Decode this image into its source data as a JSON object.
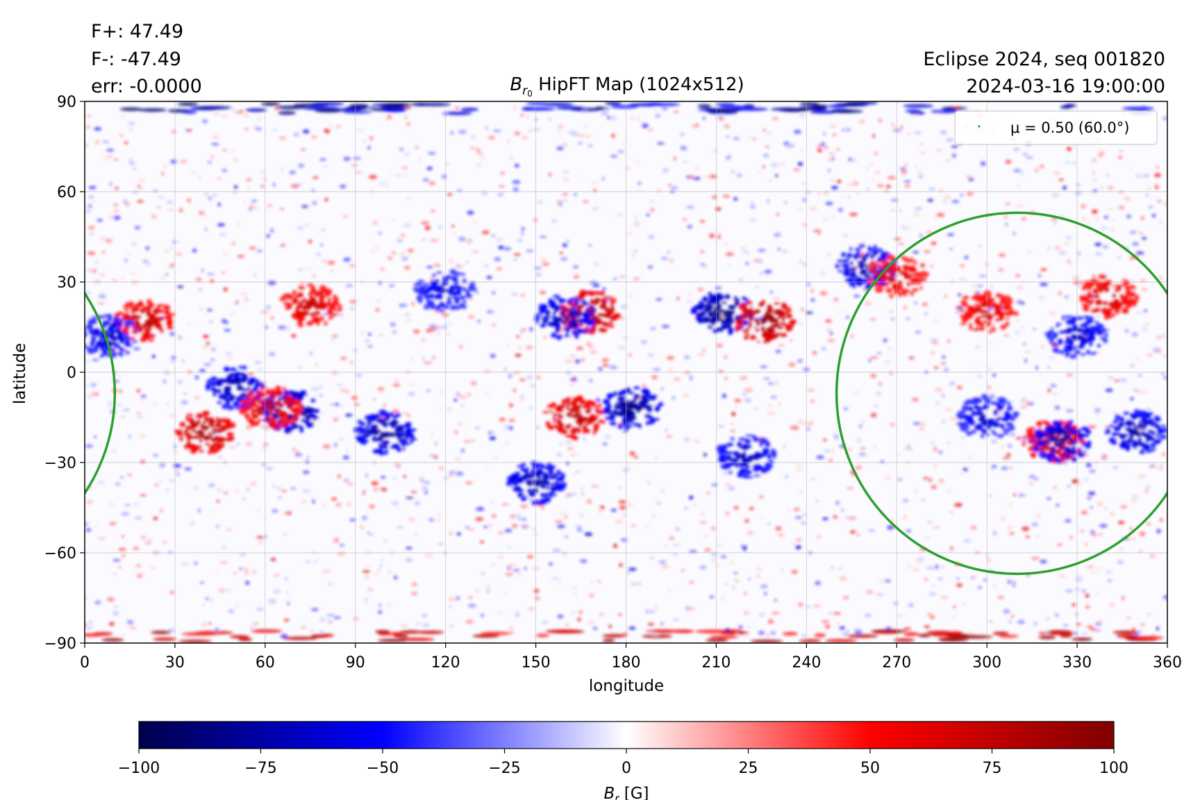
{
  "stats": {
    "f_plus": "F+: 47.49",
    "f_minus": "F-: -47.49",
    "err": "err: -0.0000"
  },
  "title": {
    "symbol": "B",
    "subscript": "r",
    "subsubscript": "0",
    "text": "HipFT Map (1024x512)"
  },
  "right_title": {
    "line1": "Eclipse 2024, seq 001820",
    "line2": "2024-03-16 19:00:00"
  },
  "legend": {
    "label": "μ = 0.50 (60.0°)",
    "color": "#2ca02c"
  },
  "colorbar": {
    "label": "B_r [G]",
    "symbol": "B",
    "subscript": "r",
    "unit": "[G]",
    "ticks": [
      "−100",
      "−75",
      "−50",
      "−25",
      "0",
      "25",
      "50",
      "75",
      "100"
    ],
    "tick_values": [
      -100,
      -75,
      -50,
      -25,
      0,
      25,
      50,
      75,
      100
    ],
    "range": [
      -100,
      100
    ],
    "colors": [
      "#00004c",
      "#0000ff",
      "#ffffff",
      "#ff0000",
      "#800000"
    ]
  },
  "chart_data": {
    "type": "heatmap",
    "title": "B_r0 HipFT Map (1024x512)",
    "xlabel": "longitude",
    "ylabel": "latitude",
    "xlim": [
      0,
      360
    ],
    "ylim": [
      -90,
      90
    ],
    "xticks": [
      0,
      30,
      60,
      90,
      120,
      150,
      180,
      210,
      240,
      270,
      300,
      330,
      360
    ],
    "yticks": [
      -90,
      -60,
      -30,
      0,
      30,
      60,
      90
    ],
    "xtick_labels": [
      "0",
      "30",
      "60",
      "90",
      "120",
      "150",
      "180",
      "210",
      "240",
      "270",
      "300",
      "330",
      "360"
    ],
    "ytick_labels": [
      "−90",
      "−60",
      "−30",
      "0",
      "30",
      "60",
      "90"
    ],
    "grid": true,
    "legend_position": "top-right",
    "colormap": "seismic",
    "value_range": [
      -100,
      100
    ],
    "contour": {
      "name": "μ = 0.50 (60.0°)",
      "color": "#2ca02c",
      "center_longitude": 310,
      "center_latitude": -7,
      "half_width_longitude": 60,
      "half_height_latitude": 60
    },
    "features": [
      {
        "lon": 20,
        "lat": 17,
        "polarity": "positive",
        "strength": 80
      },
      {
        "lon": 8,
        "lat": 12,
        "polarity": "negative",
        "strength": 70
      },
      {
        "lon": 40,
        "lat": -20,
        "polarity": "positive",
        "strength": 90
      },
      {
        "lon": 50,
        "lat": -5,
        "polarity": "negative",
        "strength": 80
      },
      {
        "lon": 68,
        "lat": -13,
        "polarity": "negative",
        "strength": 95
      },
      {
        "lon": 62,
        "lat": -12,
        "polarity": "positive",
        "strength": 80
      },
      {
        "lon": 75,
        "lat": 22,
        "polarity": "positive",
        "strength": 75
      },
      {
        "lon": 100,
        "lat": -20,
        "polarity": "negative",
        "strength": 85
      },
      {
        "lon": 120,
        "lat": 27,
        "polarity": "negative",
        "strength": 65
      },
      {
        "lon": 150,
        "lat": -37,
        "polarity": "negative",
        "strength": 80
      },
      {
        "lon": 163,
        "lat": -15,
        "polarity": "positive",
        "strength": 85
      },
      {
        "lon": 168,
        "lat": 20,
        "polarity": "positive",
        "strength": 95
      },
      {
        "lon": 160,
        "lat": 18,
        "polarity": "negative",
        "strength": 80
      },
      {
        "lon": 182,
        "lat": -12,
        "polarity": "negative",
        "strength": 90
      },
      {
        "lon": 212,
        "lat": 20,
        "polarity": "negative",
        "strength": 95
      },
      {
        "lon": 226,
        "lat": 17,
        "polarity": "positive",
        "strength": 100
      },
      {
        "lon": 220,
        "lat": -28,
        "polarity": "negative",
        "strength": 75
      },
      {
        "lon": 260,
        "lat": 35,
        "polarity": "negative",
        "strength": 80
      },
      {
        "lon": 270,
        "lat": 32,
        "polarity": "positive",
        "strength": 70
      },
      {
        "lon": 322,
        "lat": -23,
        "polarity": "positive",
        "strength": 85
      },
      {
        "lon": 325,
        "lat": -23,
        "polarity": "negative",
        "strength": 85
      },
      {
        "lon": 350,
        "lat": -20,
        "polarity": "negative",
        "strength": 80
      },
      {
        "lon": 340,
        "lat": 25,
        "polarity": "positive",
        "strength": 75
      },
      {
        "lon": 300,
        "lat": 20,
        "polarity": "positive",
        "strength": 70
      },
      {
        "lon": 330,
        "lat": 12,
        "polarity": "negative",
        "strength": 70
      },
      {
        "lon": 300,
        "lat": -15,
        "polarity": "negative",
        "strength": 70
      }
    ]
  }
}
